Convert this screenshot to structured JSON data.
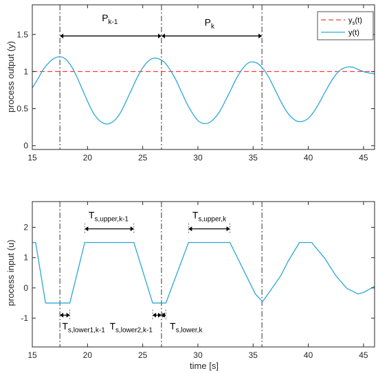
{
  "chart_data": [
    {
      "type": "line",
      "ylabel": "process output (y)",
      "xlabel": "",
      "xlim": [
        15,
        46
      ],
      "ylim": [
        -0.05,
        1.9
      ],
      "xticks": [
        15,
        20,
        25,
        30,
        35,
        40,
        45
      ],
      "yticks": [
        0,
        0.5,
        1,
        1.5
      ],
      "ytick_labels": [
        "0",
        "0.5",
        "1",
        "1.5"
      ],
      "grid": false,
      "legend_position": "top-right",
      "series": [
        {
          "name": "y_s(t)",
          "legend_main": "y",
          "legend_sub": "s",
          "legend_tail": "(t)",
          "color": "#ff3b3b",
          "style": "dashed",
          "x": [
            15,
            46
          ],
          "y": [
            1.0,
            1.0
          ]
        },
        {
          "name": "y(t)",
          "legend_main": "y(t)",
          "color": "#2aa6d6",
          "style": "solid",
          "x": [
            15.0,
            15.5,
            16.0,
            16.5,
            17.0,
            17.5,
            18.0,
            18.5,
            19.0,
            19.5,
            20.0,
            20.5,
            21.0,
            21.5,
            22.0,
            22.5,
            23.0,
            23.5,
            24.0,
            24.5,
            25.0,
            25.5,
            26.0,
            26.5,
            27.0,
            27.5,
            28.0,
            28.5,
            29.0,
            29.5,
            30.0,
            30.5,
            31.0,
            31.5,
            32.0,
            32.5,
            33.0,
            33.5,
            34.0,
            34.5,
            35.0,
            35.5,
            36.0,
            36.5,
            37.0,
            37.5,
            38.0,
            38.5,
            39.0,
            39.5,
            40.0,
            40.5,
            41.0,
            41.5,
            42.0,
            42.5,
            43.0,
            43.5,
            44.0,
            44.5,
            45.0,
            45.5,
            46.0
          ],
          "y": [
            0.78,
            0.9,
            1.03,
            1.12,
            1.18,
            1.2,
            1.17,
            1.08,
            0.94,
            0.77,
            0.6,
            0.45,
            0.35,
            0.3,
            0.3,
            0.35,
            0.45,
            0.6,
            0.76,
            0.92,
            1.05,
            1.14,
            1.18,
            1.17,
            1.12,
            1.02,
            0.89,
            0.73,
            0.57,
            0.44,
            0.34,
            0.3,
            0.31,
            0.37,
            0.47,
            0.61,
            0.76,
            0.91,
            1.03,
            1.11,
            1.13,
            1.1,
            1.02,
            0.9,
            0.75,
            0.6,
            0.47,
            0.38,
            0.33,
            0.33,
            0.37,
            0.46,
            0.58,
            0.72,
            0.85,
            0.96,
            1.03,
            1.06,
            1.06,
            1.03,
            1.0,
            0.98,
            0.97
          ]
        }
      ],
      "vlines": [
        17.5,
        26.7,
        35.8
      ],
      "annotations": [
        {
          "main": "P",
          "sub": "k-1",
          "x1": 17.5,
          "x2": 26.7,
          "y": 1.48,
          "label_x": 21.3,
          "label_y": 1.68
        },
        {
          "main": "P",
          "sub": "k",
          "x1": 26.7,
          "x2": 35.8,
          "y": 1.48,
          "label_x": 30.6,
          "label_y": 1.62
        }
      ]
    },
    {
      "type": "line",
      "ylabel": "process input (u)",
      "xlabel": "time [s]",
      "xlim": [
        15,
        46
      ],
      "ylim": [
        -1.95,
        2.85
      ],
      "xticks": [
        15,
        20,
        25,
        30,
        35,
        40,
        45
      ],
      "yticks": [
        -1,
        0,
        1,
        2
      ],
      "grid": false,
      "series": [
        {
          "name": "u(t)",
          "color": "#2aa6d6",
          "style": "solid",
          "x": [
            15.0,
            15.3,
            16.2,
            18.4,
            19.75,
            24.2,
            25.9,
            27.1,
            29.15,
            32.9,
            35.2,
            35.85,
            36.2,
            37.5,
            38.2,
            39.2,
            40.3,
            41.5,
            42.5,
            43.5,
            44.5,
            45.0,
            45.5,
            46.0
          ],
          "y": [
            1.5,
            1.5,
            -0.5,
            -0.5,
            1.5,
            1.5,
            -0.5,
            -0.5,
            1.5,
            1.5,
            -0.2,
            -0.45,
            -0.28,
            0.4,
            0.9,
            1.5,
            1.5,
            0.97,
            0.4,
            -0.02,
            -0.2,
            -0.15,
            -0.05,
            0.05
          ]
        }
      ],
      "vlines": [
        17.5,
        26.7,
        35.8
      ],
      "annotations": [
        {
          "main": "T",
          "sub": "s,upper,k-1",
          "x1": 19.75,
          "x2": 24.2,
          "y": 1.95,
          "label_x": 20.1,
          "label_y": 2.3
        },
        {
          "main": "T",
          "sub": "s,upper,k",
          "x1": 29.15,
          "x2": 32.9,
          "y": 1.95,
          "label_x": 29.5,
          "label_y": 2.3
        },
        {
          "main": "T",
          "sub": "s,lower1,k-1",
          "x1": 17.5,
          "x2": 18.4,
          "y": -0.9,
          "label_x": 17.7,
          "label_y": -1.37
        },
        {
          "main": "T",
          "sub": "s,lower2,k-1",
          "x1": 25.9,
          "x2": 26.7,
          "y": -0.9,
          "label_x": 22.0,
          "label_y": -1.37
        },
        {
          "main": "T",
          "sub": "s,lower,k",
          "x1": 26.7,
          "x2": 27.1,
          "y": -0.9,
          "label_x": 27.45,
          "label_y": -1.37
        }
      ]
    }
  ]
}
